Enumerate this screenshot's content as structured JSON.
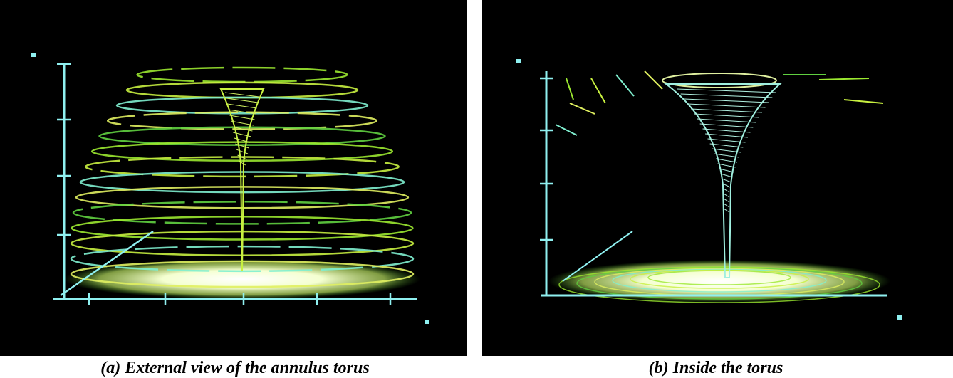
{
  "figure": {
    "panels": [
      {
        "caption": "(a) External view of the annulus torus"
      },
      {
        "caption": "(b) Inside the torus"
      }
    ]
  }
}
